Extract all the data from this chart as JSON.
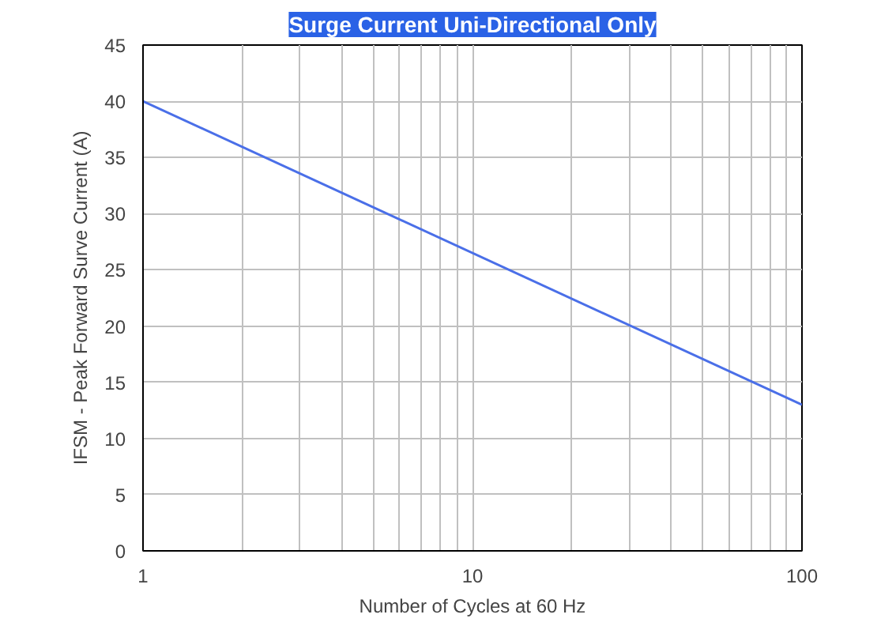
{
  "chart_data": {
    "type": "line",
    "title": "Surge Current Uni-Directional Only",
    "xlabel": "Number of Cycles at 60 Hz",
    "ylabel": "IFSM - Peak Forward Surve Current (A)",
    "x": [
      1,
      100
    ],
    "log": "x",
    "series": [
      {
        "color": "#4a6fe8",
        "values": [
          40,
          13
        ]
      }
    ],
    "xlim": [
      1,
      100
    ],
    "ylim": [
      0,
      45
    ],
    "xticks": [
      1,
      {
        "value": 2,
        "label": null
      },
      {
        "value": 3,
        "label": null
      },
      {
        "value": 4,
        "label": null
      },
      {
        "value": 5,
        "label": null
      },
      {
        "value": 6,
        "label": null
      },
      {
        "value": 7,
        "label": null
      },
      {
        "value": 8,
        "label": null
      },
      {
        "value": 9,
        "label": null
      },
      10,
      {
        "value": 20,
        "label": null
      },
      {
        "value": 30,
        "label": null
      },
      {
        "value": 40,
        "label": null
      },
      {
        "value": 50,
        "label": null
      },
      {
        "value": 60,
        "label": null
      },
      {
        "value": 70,
        "label": null
      },
      {
        "value": 80,
        "label": null
      },
      {
        "value": 90,
        "label": null
      },
      100
    ],
    "yticks": [
      0,
      5,
      10,
      15,
      20,
      25,
      30,
      35,
      40,
      45
    ],
    "grid": true
  }
}
